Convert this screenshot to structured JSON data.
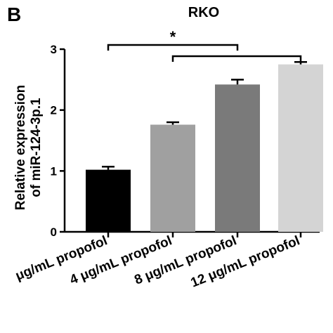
{
  "panel_letter": "B",
  "chart_data": {
    "type": "bar",
    "title": "RKO",
    "ylabel_line1": "Relative expression",
    "ylabel_line2": "of miR-124-3p.1",
    "xlabel": "",
    "ylim": [
      0,
      3
    ],
    "yticks": [
      0,
      1,
      2,
      3
    ],
    "categories": [
      "μg/mL propofol",
      "4 μg/mL propofol",
      "8 μg/mL propofol",
      "12 μg/mL propofol"
    ],
    "values": [
      1.02,
      1.76,
      2.42,
      2.75
    ],
    "errors": [
      0.05,
      0.04,
      0.08,
      0.04
    ],
    "colors": [
      "#000000",
      "#a0a0a0",
      "#7a7a7a",
      "#d4d4d4"
    ],
    "significance": {
      "label": "*",
      "brackets": [
        {
          "from": 0,
          "to": 2
        },
        {
          "from": 1,
          "to": 3
        }
      ]
    }
  }
}
